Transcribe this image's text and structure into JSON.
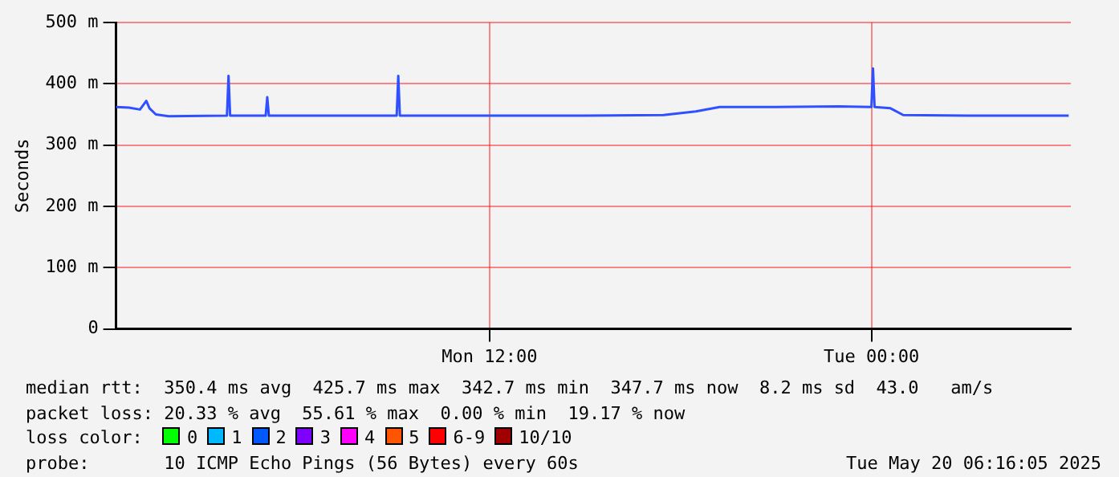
{
  "chart_data": {
    "type": "line",
    "ylabel": "Seconds",
    "x": [
      "2025-05-19T00:16",
      "2025-05-19T00:40",
      "2025-05-19T01:01",
      "2025-05-19T01:13",
      "2025-05-19T01:19",
      "2025-05-19T01:31",
      "2025-05-19T01:55",
      "2025-05-19T03:45",
      "2025-05-19T03:48",
      "2025-05-19T03:51",
      "2025-05-19T04:58",
      "2025-05-19T05:01",
      "2025-05-19T05:04",
      "2025-05-19T09:05",
      "2025-05-19T09:08",
      "2025-05-19T09:11",
      "2025-05-19T11:57",
      "2025-05-19T14:58",
      "2025-05-19T17:28",
      "2025-05-19T18:29",
      "2025-05-19T19:14",
      "2025-05-19T20:59",
      "2025-05-19T22:59",
      "2025-05-20T00:00",
      "2025-05-20T00:03",
      "2025-05-20T00:06",
      "2025-05-20T00:36",
      "2025-05-20T01:00",
      "2025-05-20T03:01",
      "2025-05-20T06:12"
    ],
    "series": [
      {
        "color": "#3050ff",
        "values": [
          362,
          361,
          358,
          372,
          360,
          350,
          347,
          348,
          413,
          348,
          348,
          378,
          348,
          348,
          413,
          348,
          348,
          348,
          349,
          355,
          362,
          362,
          363,
          362,
          425,
          362,
          360,
          349,
          348,
          348
        ]
      }
    ],
    "xlim": [
      "2025-05-19T00:16",
      "2025-05-20T06:16"
    ],
    "xticks": [
      {
        "value": "2025-05-19T12:00",
        "label": "Mon 12:00"
      },
      {
        "value": "2025-05-20T00:00",
        "label": "Tue 00:00"
      }
    ],
    "ylim": [
      0,
      500
    ],
    "yticks": [
      0,
      {
        "value": 100,
        "label": "100 m"
      },
      {
        "value": 200,
        "label": "200 m"
      },
      {
        "value": 300,
        "label": "300 m"
      },
      {
        "value": 400,
        "label": "400 m"
      },
      {
        "value": 500,
        "label": "500 m"
      }
    ],
    "grid": true,
    "legend": false,
    "marker": "none",
    "line_style": "solid",
    "annotations": [
      "median rtt:  350.4 ms avg  425.7 ms max  342.7 ms min  347.7 ms now  8.2 ms sd  43.0   am/s",
      "packet loss: 20.33 % avg  55.61 % max  0.00 % min  19.17 % now",
      "loss color:  0  1  2  3  4  5  6-9  10/10",
      "probe:       10 ICMP Echo Pings (56 Bytes) every 60s",
      "Tue May 20 06:16:05 2025"
    ]
  }
}
